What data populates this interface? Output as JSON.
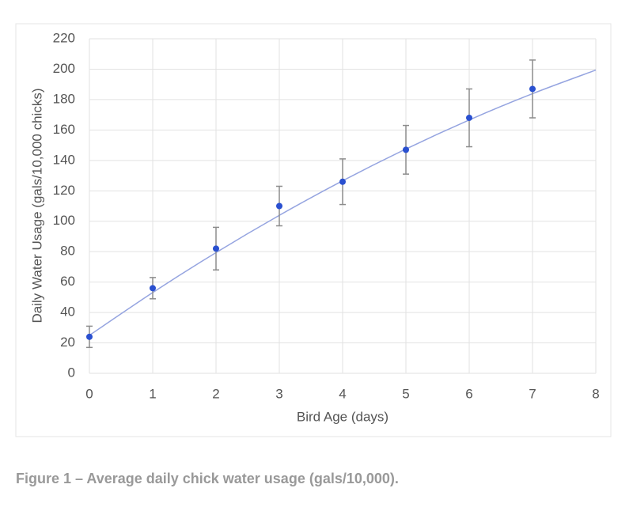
{
  "chart_data": {
    "type": "scatter",
    "xlabel": "Bird Age (days)",
    "ylabel": "Daily Water Usage (gals/10,000 chicks)",
    "caption": "Figure 1 – Average daily chick water usage (gals/10,000).",
    "x": [
      0,
      1,
      2,
      3,
      4,
      5,
      6,
      7
    ],
    "series": [
      {
        "color": "#2a50d0",
        "error_color": "#8c8c8c",
        "values": [
          24,
          56,
          82,
          110,
          126,
          147,
          168,
          187
        ],
        "errors": [
          7,
          7,
          14,
          13,
          15,
          16,
          19,
          19
        ]
      }
    ],
    "trendline": {
      "color": "#95a4e0",
      "x": [
        0,
        1,
        2,
        3,
        4,
        5,
        6,
        7,
        8
      ],
      "values": [
        25,
        53.1,
        79.4,
        103.9,
        126.6,
        147.5,
        166.6,
        183.9,
        199.4
      ]
    },
    "xlim": [
      0,
      8
    ],
    "xticks": [
      0,
      1,
      2,
      3,
      4,
      5,
      6,
      7,
      8
    ],
    "ylim": [
      0,
      220
    ],
    "yticks": [
      0,
      20,
      40,
      60,
      80,
      100,
      120,
      140,
      160,
      180,
      200,
      220
    ],
    "grid": true
  }
}
